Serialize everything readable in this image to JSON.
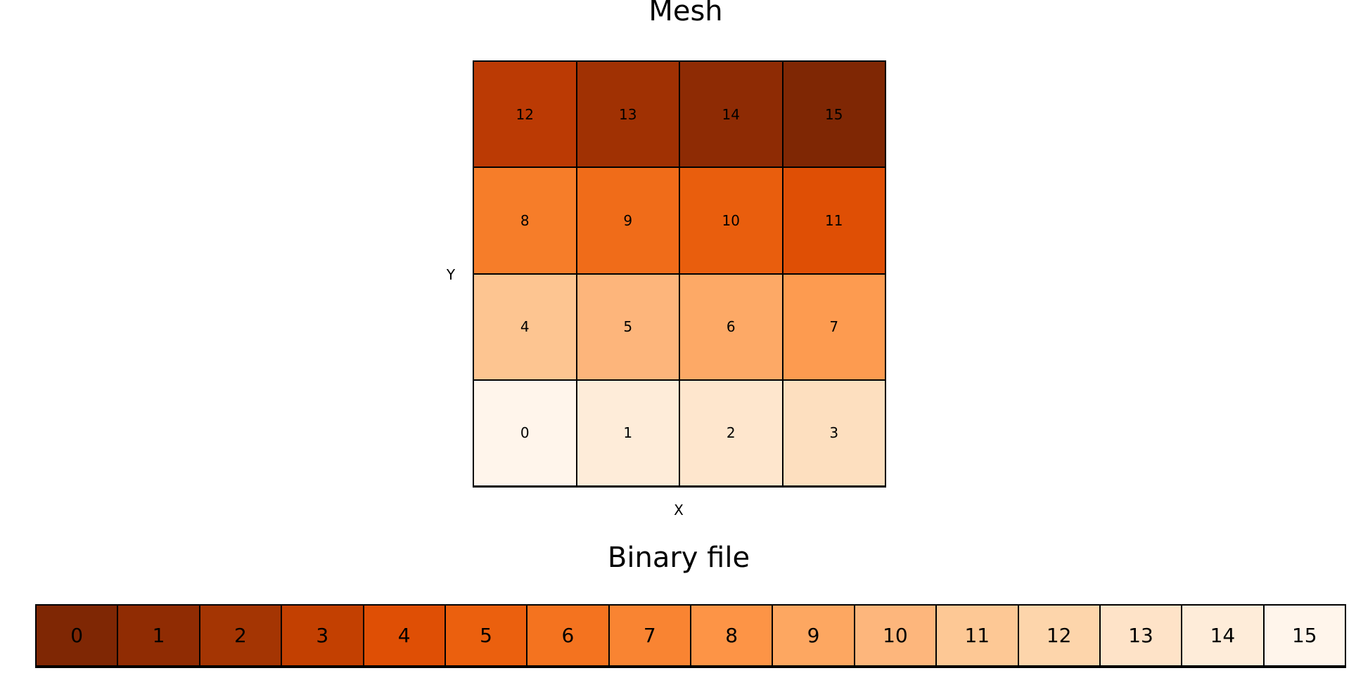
{
  "mesh": {
    "title": "Mesh",
    "xlabel": "X",
    "ylabel": "Y",
    "rows": [
      [
        {
          "id": "12",
          "color": "#bb3a04"
        },
        {
          "id": "13",
          "color": "#a03103"
        },
        {
          "id": "14",
          "color": "#8e2b04"
        },
        {
          "id": "15",
          "color": "#7f2704"
        }
      ],
      [
        {
          "id": "8",
          "color": "#f67d29"
        },
        {
          "id": "9",
          "color": "#f06c19"
        },
        {
          "id": "10",
          "color": "#e95e0d"
        },
        {
          "id": "11",
          "color": "#df4f05"
        }
      ],
      [
        {
          "id": "4",
          "color": "#fdc591"
        },
        {
          "id": "5",
          "color": "#fdb57b"
        },
        {
          "id": "6",
          "color": "#fda966"
        },
        {
          "id": "7",
          "color": "#fd9b50"
        }
      ],
      [
        {
          "id": "0",
          "color": "#fff5eb"
        },
        {
          "id": "1",
          "color": "#feecd9"
        },
        {
          "id": "2",
          "color": "#fee6cd"
        },
        {
          "id": "3",
          "color": "#fddfbf"
        }
      ]
    ]
  },
  "binary_file": {
    "title": "Binary file",
    "cells": [
      {
        "id": "0",
        "color": "#7f2704"
      },
      {
        "id": "1",
        "color": "#902c03"
      },
      {
        "id": "2",
        "color": "#a43503"
      },
      {
        "id": "3",
        "color": "#c34001"
      },
      {
        "id": "4",
        "color": "#df4f05"
      },
      {
        "id": "5",
        "color": "#eb600e"
      },
      {
        "id": "6",
        "color": "#f4731f"
      },
      {
        "id": "7",
        "color": "#f98432"
      },
      {
        "id": "8",
        "color": "#fd9446"
      },
      {
        "id": "9",
        "color": "#fda761"
      },
      {
        "id": "10",
        "color": "#fdb67c"
      },
      {
        "id": "11",
        "color": "#fdc895"
      },
      {
        "id": "12",
        "color": "#fdd5ab"
      },
      {
        "id": "13",
        "color": "#fee3c8"
      },
      {
        "id": "14",
        "color": "#feecd9"
      },
      {
        "id": "15",
        "color": "#fff5eb"
      }
    ]
  }
}
